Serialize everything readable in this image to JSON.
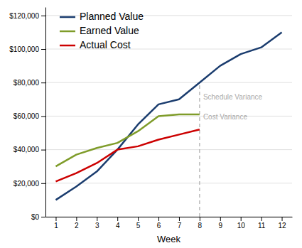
{
  "chart_data": {
    "type": "line",
    "x_label": "Week",
    "x": [
      1,
      2,
      3,
      4,
      5,
      6,
      7,
      8,
      9,
      10,
      11,
      12
    ],
    "series": [
      {
        "name": "Planned Value",
        "color": "#1a3c6e",
        "values": [
          10000,
          18000,
          27000,
          40000,
          55000,
          67000,
          70000,
          80000,
          90000,
          97000,
          101000,
          110000
        ]
      },
      {
        "name": "Earned Value",
        "color": "#7f9c2a",
        "values": [
          30000,
          37000,
          41000,
          44000,
          51000,
          60000,
          61000,
          61000,
          null,
          null,
          null,
          null
        ]
      },
      {
        "name": "Actual Cost",
        "color": "#cc0000",
        "values": [
          21000,
          26000,
          32000,
          40000,
          42000,
          46000,
          49000,
          52000,
          null,
          null,
          null,
          null
        ]
      }
    ],
    "vline": {
      "x": 8,
      "y": [
        0,
        80000
      ],
      "color": "#aaaaaa",
      "line_style": "dashed"
    },
    "annotations": [
      {
        "text": "Schedule Variance",
        "x": 8,
        "y": 71000,
        "color": "#aaaaaa"
      },
      {
        "text": "Cost Variance",
        "x": 8,
        "y": 59000,
        "color": "#aaaaaa"
      }
    ],
    "xlim": [
      0.5,
      12.5
    ],
    "xticks": [
      1,
      2,
      3,
      4,
      5,
      6,
      7,
      8,
      9,
      10,
      11,
      12
    ],
    "ylim": [
      0,
      125000
    ],
    "yticks": [
      {
        "value": 0,
        "label": "$0"
      },
      {
        "value": 20000,
        "label": "$20,000"
      },
      {
        "value": 40000,
        "label": "$40,000"
      },
      {
        "value": 60000,
        "label": "$60,000"
      },
      {
        "value": 80000,
        "label": "$80,000"
      },
      {
        "value": 100000,
        "label": "$100,000"
      },
      {
        "value": 120000,
        "label": "$120,000"
      }
    ],
    "grid": true,
    "legend": "upper left"
  }
}
